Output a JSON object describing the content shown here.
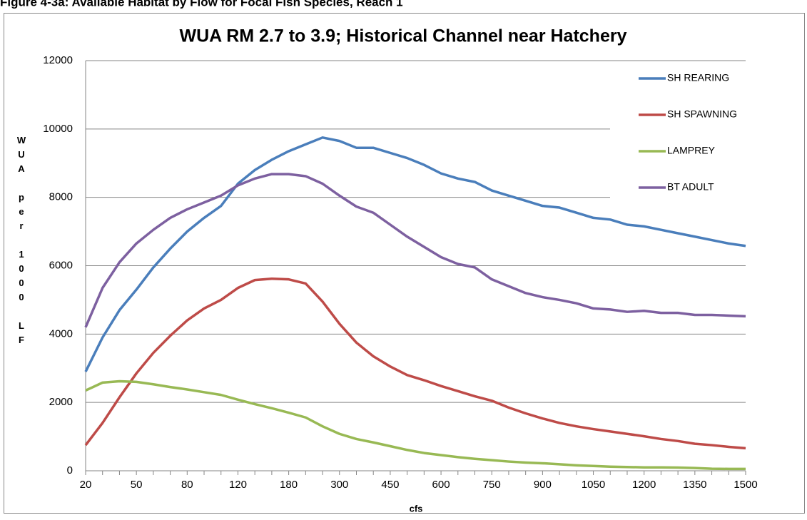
{
  "caption": "Figure 4-3a: Available Habitat by Flow for Focal Fish Species, Reach 1",
  "chart_data": {
    "type": "line",
    "title": "WUA RM 2.7 to 3.9; Historical Channel near Hatchery",
    "x_label": "cfs",
    "y_label": "WUA per 1000 LF",
    "categories": [
      "20",
      null,
      null,
      "50",
      null,
      null,
      "80",
      null,
      null,
      "120",
      null,
      null,
      "180",
      null,
      null,
      "300",
      null,
      null,
      "450",
      null,
      null,
      "600",
      null,
      null,
      "750",
      null,
      null,
      "900",
      null,
      null,
      "1050",
      null,
      null,
      "1200",
      null,
      null,
      "1350",
      null,
      null,
      "1500"
    ],
    "ylim": [
      0,
      12000
    ],
    "yticks": [
      0,
      2000,
      4000,
      6000,
      8000,
      10000,
      12000
    ],
    "grid": true,
    "legend": "top-right",
    "series": [
      {
        "name": "SH REARING",
        "color": "#4a7ebb",
        "values": [
          2900,
          3900,
          4700,
          5300,
          5950,
          6500,
          7000,
          7400,
          7750,
          8400,
          8800,
          9100,
          9350,
          9550,
          9750,
          9650,
          9450,
          9450,
          9300,
          9150,
          8950,
          8700,
          8550,
          8450,
          8200,
          8050,
          7900,
          7750,
          7700,
          7550,
          7400,
          7350,
          7200,
          7150,
          7050,
          6950,
          6850,
          6750,
          6650,
          6580
        ]
      },
      {
        "name": "SH SPAWNING",
        "color": "#be4b48",
        "values": [
          750,
          1400,
          2150,
          2850,
          3450,
          3950,
          4400,
          4750,
          5000,
          5350,
          5580,
          5620,
          5600,
          5480,
          4950,
          4300,
          3750,
          3350,
          3050,
          2800,
          2650,
          2480,
          2330,
          2180,
          2050,
          1850,
          1680,
          1530,
          1400,
          1300,
          1220,
          1150,
          1080,
          1010,
          930,
          870,
          790,
          750,
          700,
          660
        ]
      },
      {
        "name": "LAMPREY",
        "color": "#98b954",
        "values": [
          2350,
          2580,
          2620,
          2600,
          2530,
          2450,
          2380,
          2300,
          2220,
          2080,
          1950,
          1830,
          1700,
          1560,
          1300,
          1080,
          930,
          830,
          720,
          610,
          520,
          460,
          400,
          350,
          310,
          270,
          240,
          220,
          190,
          160,
          140,
          120,
          110,
          100,
          100,
          95,
          80,
          60,
          55,
          55
        ]
      },
      {
        "name": "BT ADULT",
        "color": "#7d60a0",
        "values": [
          4200,
          5350,
          6100,
          6650,
          7050,
          7400,
          7650,
          7850,
          8050,
          8350,
          8550,
          8680,
          8680,
          8620,
          8400,
          8050,
          7730,
          7550,
          7200,
          6850,
          6550,
          6250,
          6050,
          5950,
          5600,
          5400,
          5200,
          5080,
          5000,
          4900,
          4750,
          4720,
          4650,
          4680,
          4620,
          4620,
          4560,
          4560,
          4540,
          4520
        ]
      }
    ]
  }
}
